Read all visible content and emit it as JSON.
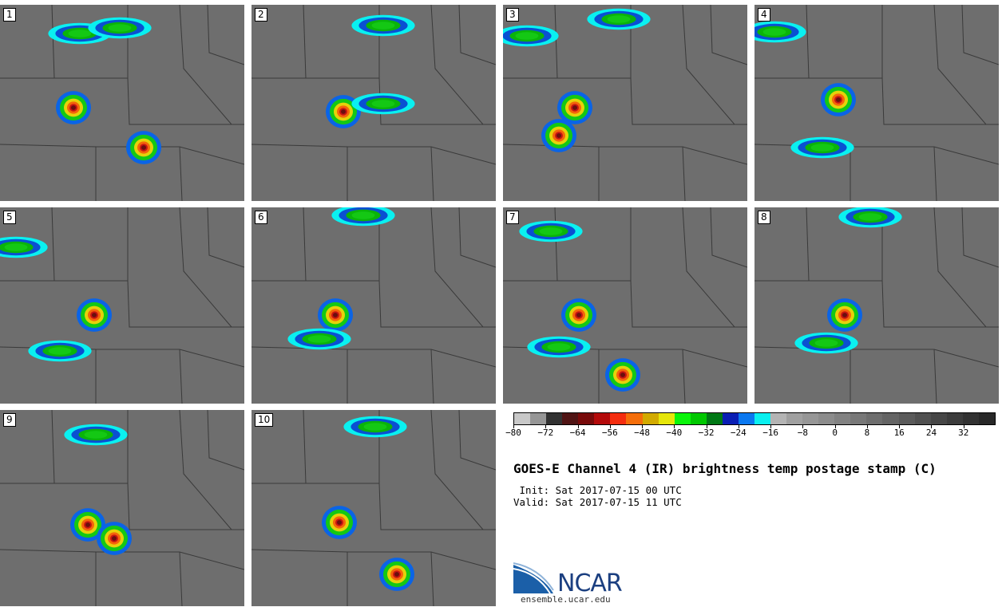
{
  "panels": [
    {
      "label": "1"
    },
    {
      "label": "2"
    },
    {
      "label": "3"
    },
    {
      "label": "4"
    },
    {
      "label": "5"
    },
    {
      "label": "6"
    },
    {
      "label": "7"
    },
    {
      "label": "8"
    },
    {
      "label": "9"
    },
    {
      "label": "10"
    }
  ],
  "colorbar": {
    "colors": [
      "#c8c8c8",
      "#969696",
      "#323232",
      "#501414",
      "#780a0a",
      "#b40a0a",
      "#f52d0f",
      "#f56e0a",
      "#d2aa00",
      "#e6e60a",
      "#0af50a",
      "#00c800",
      "#007814",
      "#0a1eb4",
      "#0a78f0",
      "#0af0f0",
      "#b4b4b4",
      "#a0a0a0",
      "#969696",
      "#8c8c8c",
      "#828282",
      "#787878",
      "#6e6e6e",
      "#646464",
      "#5a5a5a",
      "#505050",
      "#464646",
      "#3c3c3c",
      "#323232",
      "#282828"
    ],
    "tick_labels": [
      "−80",
      "−72",
      "−64",
      "−56",
      "−48",
      "−40",
      "−32",
      "−24",
      "−16",
      "−8",
      "0",
      "8",
      "16",
      "24",
      "32"
    ]
  },
  "title": "GOES-E Channel 4 (IR) brightness temp postage stamp (C)",
  "init_line": " Init: Sat 2017-07-15 00 UTC",
  "valid_line": "Valid: Sat 2017-07-15 11 UTC",
  "logo": {
    "name": "NCAR",
    "url": "ensemble.ucar.edu"
  }
}
